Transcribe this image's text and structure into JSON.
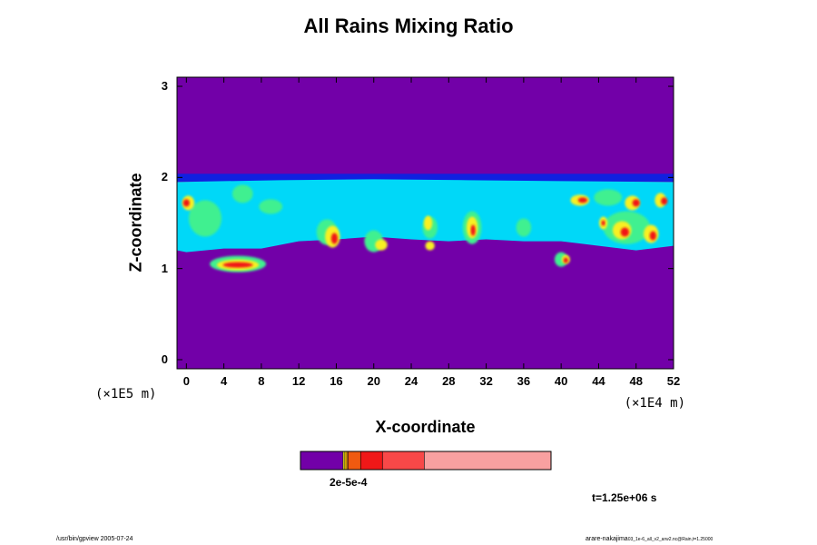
{
  "chart_data": {
    "type": "heatmap",
    "title": "All Rains Mixing Ratio",
    "xlabel": "X-coordinate",
    "ylabel": "Z-coordinate",
    "x_unit": "(×1E4 m)",
    "y_unit": "(×1E5 m)",
    "x_ticks": [
      "0",
      "4",
      "8",
      "12",
      "16",
      "20",
      "24",
      "28",
      "32",
      "36",
      "40",
      "44",
      "48",
      "52"
    ],
    "y_ticks": [
      "0",
      "1",
      "2",
      "3"
    ],
    "xlim": [
      -1,
      52
    ],
    "ylim": [
      -0.1,
      3.1
    ],
    "colors": {
      "background": "#7200a8",
      "dark_blue": "#1020e0",
      "mid_blue": "#1890f0",
      "cyan": "#00d8f8",
      "green": "#40f090",
      "yellow_green": "#c0f040",
      "yellow": "#f8f020",
      "orange": "#f89020",
      "red": "#f01818"
    },
    "colorbar": {
      "segments": [
        {
          "color": "#7200a8",
          "fraction": 0.17
        },
        {
          "color": "#f8f020",
          "fraction": 0.007
        },
        {
          "color": "#f8c000",
          "fraction": 0.008
        },
        {
          "color": "#f89020",
          "fraction": 0.005
        },
        {
          "color": "#f05a10",
          "fraction": 0.05
        },
        {
          "color": "#f01818",
          "fraction": 0.087
        },
        {
          "color": "#f84848",
          "fraction": 0.167
        },
        {
          "color": "#f8a0a0",
          "fraction": 0.506
        }
      ],
      "tick_label": "2e-5e-4"
    },
    "regions": [
      {
        "color": "dark_blue",
        "band": true,
        "x0": -1,
        "x1": 52,
        "z0": 1.955,
        "z1": 2.04
      },
      {
        "color": "cyan",
        "poly": [
          [
            -1,
            1.95
          ],
          [
            10,
            1.97
          ],
          [
            20,
            1.98
          ],
          [
            30,
            1.97
          ],
          [
            40,
            1.96
          ],
          [
            52,
            1.95
          ],
          [
            52,
            1.25
          ],
          [
            48,
            1.2
          ],
          [
            44,
            1.25
          ],
          [
            40,
            1.3
          ],
          [
            36,
            1.3
          ],
          [
            32,
            1.32
          ],
          [
            28,
            1.3
          ],
          [
            24,
            1.32
          ],
          [
            20,
            1.35
          ],
          [
            16,
            1.32
          ],
          [
            12,
            1.3
          ],
          [
            8,
            1.22
          ],
          [
            4,
            1.22
          ],
          [
            0,
            1.18
          ],
          [
            -1,
            1.2
          ]
        ]
      },
      {
        "color": "green",
        "ellipse": [
          2,
          1.55,
          3.5,
          0.2
        ]
      },
      {
        "color": "green",
        "ellipse": [
          6,
          1.82,
          2.2,
          0.1
        ]
      },
      {
        "color": "green",
        "ellipse": [
          9,
          1.68,
          2.5,
          0.08
        ]
      },
      {
        "color": "green",
        "ellipse": [
          45,
          1.78,
          3,
          0.09
        ]
      },
      {
        "color": "green",
        "ellipse": [
          47,
          1.45,
          5,
          0.18
        ]
      },
      {
        "color": "green",
        "ellipse": [
          15,
          1.4,
          2.2,
          0.14
        ]
      },
      {
        "color": "green",
        "ellipse": [
          20,
          1.3,
          2,
          0.12
        ]
      },
      {
        "color": "green",
        "ellipse": [
          26,
          1.45,
          1.6,
          0.12
        ]
      },
      {
        "color": "green",
        "ellipse": [
          30.5,
          1.45,
          2,
          0.18
        ]
      },
      {
        "color": "green",
        "ellipse": [
          36,
          1.45,
          1.6,
          0.1
        ]
      },
      {
        "color": "green",
        "ellipse": [
          40,
          1.1,
          1.4,
          0.08
        ]
      },
      {
        "color": "green",
        "ellipse": [
          5.5,
          1.05,
          6,
          0.09
        ]
      },
      {
        "color": "yellow",
        "ellipse": [
          5.5,
          1.04,
          4.5,
          0.06
        ]
      },
      {
        "color": "red",
        "ellipse": [
          5.5,
          1.04,
          3.2,
          0.03
        ]
      },
      {
        "color": "yellow",
        "ellipse": [
          0.2,
          1.72,
          1.3,
          0.08
        ]
      },
      {
        "color": "red",
        "ellipse": [
          0.0,
          1.72,
          0.7,
          0.04
        ]
      },
      {
        "color": "yellow",
        "ellipse": [
          15.6,
          1.35,
          1.6,
          0.12
        ]
      },
      {
        "color": "red",
        "ellipse": [
          15.8,
          1.33,
          0.7,
          0.06
        ]
      },
      {
        "color": "yellow",
        "ellipse": [
          20.8,
          1.26,
          1.3,
          0.06
        ]
      },
      {
        "color": "yellow",
        "ellipse": [
          25.8,
          1.5,
          0.9,
          0.08
        ]
      },
      {
        "color": "yellow",
        "ellipse": [
          30.5,
          1.45,
          1.2,
          0.12
        ]
      },
      {
        "color": "red",
        "ellipse": [
          30.6,
          1.42,
          0.5,
          0.06
        ]
      },
      {
        "color": "yellow",
        "ellipse": [
          40.5,
          1.1,
          0.9,
          0.05
        ]
      },
      {
        "color": "red",
        "ellipse": [
          40.5,
          1.09,
          0.5,
          0.03
        ]
      },
      {
        "color": "yellow",
        "ellipse": [
          42,
          1.75,
          2,
          0.06
        ]
      },
      {
        "color": "red",
        "ellipse": [
          42.3,
          1.75,
          1,
          0.03
        ]
      },
      {
        "color": "yellow",
        "ellipse": [
          47.6,
          1.72,
          1.6,
          0.08
        ]
      },
      {
        "color": "red",
        "ellipse": [
          48,
          1.72,
          0.8,
          0.04
        ]
      },
      {
        "color": "yellow",
        "ellipse": [
          50.6,
          1.75,
          1.2,
          0.08
        ]
      },
      {
        "color": "red",
        "ellipse": [
          51,
          1.74,
          0.7,
          0.04
        ]
      },
      {
        "color": "yellow",
        "ellipse": [
          46.5,
          1.42,
          2,
          0.1
        ]
      },
      {
        "color": "red",
        "ellipse": [
          46.8,
          1.4,
          0.9,
          0.05
        ]
      },
      {
        "color": "yellow",
        "ellipse": [
          49.6,
          1.38,
          1.6,
          0.1
        ]
      },
      {
        "color": "red",
        "ellipse": [
          49.8,
          1.36,
          0.7,
          0.05
        ]
      },
      {
        "color": "yellow",
        "ellipse": [
          44.5,
          1.5,
          0.9,
          0.07
        ]
      },
      {
        "color": "red",
        "ellipse": [
          44.5,
          1.5,
          0.4,
          0.03
        ]
      },
      {
        "color": "yellow",
        "ellipse": [
          26,
          1.25,
          1,
          0.05
        ]
      }
    ]
  },
  "annotations": {
    "time": "t=1.25e+06 s",
    "footer_left": "/usr/bin/gpview 2005-07-24",
    "footer_right": "arare-nakajima",
    "footer_right_small": "03_1e-6_all_v2_arw2.nc@Rain,t=1.25000"
  }
}
